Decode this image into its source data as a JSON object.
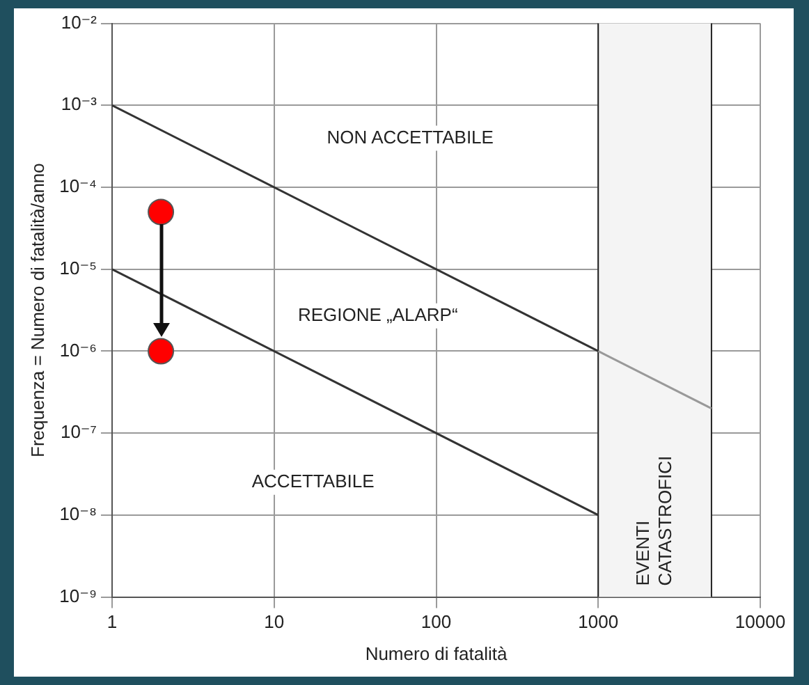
{
  "chart_data": {
    "type": "line",
    "xlabel": "Numero di fatalità",
    "ylabel": "Frequenza = Numero di fatalità/anno",
    "log": "xy",
    "xlim": [
      1,
      10000
    ],
    "ylim": [
      1e-09,
      0.01
    ],
    "xticks": [
      1,
      10,
      100,
      1000,
      10000
    ],
    "yticks": [
      {
        "value": 1e-09,
        "label": "10⁻⁹"
      },
      {
        "value": 1e-08,
        "label": "10⁻⁸"
      },
      {
        "value": 1e-07,
        "label": "10⁻⁷"
      },
      {
        "value": 1e-06,
        "label": "10⁻⁶"
      },
      {
        "value": 1e-05,
        "label": "10⁻⁵"
      },
      {
        "value": 0.0001,
        "label": "10⁻⁴"
      },
      {
        "value": 0.001,
        "label": "10⁻³"
      },
      {
        "value": 0.01,
        "label": "10⁻²"
      }
    ],
    "grid": true,
    "legend": false,
    "series": [
      {
        "color": "#333333",
        "x": [
          1,
          1000
        ],
        "values": [
          0.001,
          1e-06
        ]
      },
      {
        "color": "#999999",
        "x": [
          1000,
          5000
        ],
        "values": [
          1e-06,
          2e-07
        ]
      },
      {
        "color": "#333333",
        "x": [
          1,
          1000
        ],
        "values": [
          1e-05,
          1e-08
        ]
      },
      {
        "type": "scatter",
        "color": "#ff0000",
        "marker": "circle",
        "x": [
          2,
          2
        ],
        "values": [
          5e-05,
          1e-06
        ]
      }
    ],
    "bands": [
      {
        "axis": "x",
        "from": 1000,
        "to": 5000,
        "label": "EVENTI\nCATASTROFICI",
        "color": "#f4f4f4"
      }
    ],
    "ref_lines": [
      {
        "axis": "x",
        "value": 1000,
        "color": "#222222"
      },
      {
        "axis": "x",
        "value": 5000,
        "color": "#222222"
      }
    ],
    "annotations": [
      "NON ACCETTABILE",
      "REGIONE „ALARP“",
      "ACCETTABILE"
    ]
  }
}
